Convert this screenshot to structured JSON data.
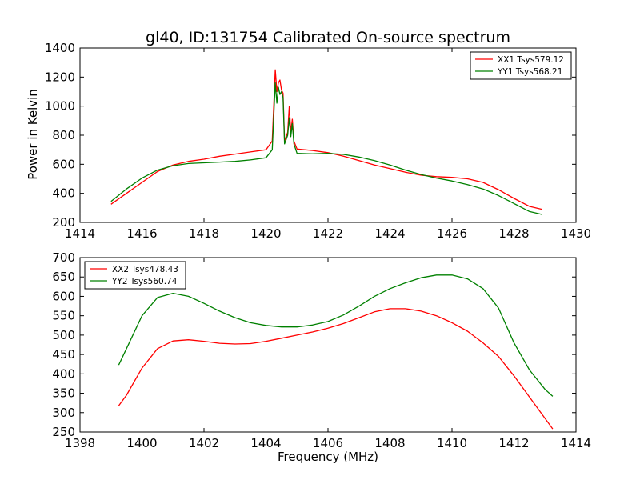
{
  "chart_data": [
    {
      "type": "line",
      "title": "gl40, ID:131754 Calibrated On-source spectrum",
      "xlabel": "",
      "ylabel": "Power in Kelvin",
      "xlim": [
        1414,
        1430
      ],
      "ylim": [
        200,
        1400
      ],
      "xticks": [
        1414,
        1416,
        1418,
        1420,
        1422,
        1424,
        1426,
        1428,
        1430
      ],
      "yticks": [
        200,
        400,
        600,
        800,
        1000,
        1200,
        1400
      ],
      "legend": "top-right",
      "series": [
        {
          "name": "XX1 Tsys579.12",
          "color": "#ff0000",
          "x": [
            1415.0,
            1415.5,
            1416.0,
            1416.5,
            1417.0,
            1417.5,
            1418.0,
            1418.5,
            1419.0,
            1419.5,
            1420.0,
            1420.2,
            1420.3,
            1420.35,
            1420.4,
            1420.45,
            1420.5,
            1420.55,
            1420.6,
            1420.7,
            1420.75,
            1420.8,
            1420.85,
            1420.9,
            1421.0,
            1421.5,
            1422.0,
            1422.5,
            1423.0,
            1423.5,
            1424.0,
            1424.5,
            1425.0,
            1425.5,
            1426.0,
            1426.5,
            1427.0,
            1427.5,
            1428.0,
            1428.5,
            1428.9
          ],
          "y": [
            325,
            400,
            475,
            550,
            595,
            620,
            635,
            655,
            670,
            685,
            700,
            760,
            1250,
            1100,
            1160,
            1180,
            1110,
            1090,
            760,
            820,
            1000,
            820,
            910,
            760,
            705,
            695,
            680,
            655,
            625,
            595,
            570,
            545,
            525,
            515,
            510,
            500,
            475,
            425,
            365,
            310,
            290
          ]
        },
        {
          "name": "YY1 Tsys568.21",
          "color": "#008000",
          "x": [
            1415.0,
            1415.5,
            1416.0,
            1416.5,
            1417.0,
            1417.5,
            1418.0,
            1418.5,
            1419.0,
            1419.5,
            1420.0,
            1420.2,
            1420.3,
            1420.35,
            1420.4,
            1420.45,
            1420.5,
            1420.55,
            1420.6,
            1420.7,
            1420.75,
            1420.8,
            1420.85,
            1420.9,
            1421.0,
            1421.5,
            1422.0,
            1422.5,
            1423.0,
            1423.5,
            1424.0,
            1424.5,
            1425.0,
            1425.5,
            1426.0,
            1426.5,
            1427.0,
            1427.5,
            1428.0,
            1428.5,
            1428.9
          ],
          "y": [
            345,
            430,
            505,
            560,
            590,
            605,
            610,
            615,
            620,
            630,
            645,
            700,
            1160,
            1020,
            1130,
            1080,
            1100,
            1060,
            740,
            800,
            920,
            790,
            880,
            740,
            675,
            672,
            675,
            668,
            650,
            625,
            595,
            560,
            530,
            505,
            485,
            460,
            430,
            385,
            330,
            275,
            255
          ]
        }
      ]
    },
    {
      "type": "line",
      "title": "",
      "xlabel": "Frequency (MHz)",
      "ylabel": "",
      "xlim": [
        1398,
        1414
      ],
      "ylim": [
        250,
        700
      ],
      "xticks": [
        1398,
        1400,
        1402,
        1404,
        1406,
        1408,
        1410,
        1412,
        1414
      ],
      "yticks": [
        250,
        300,
        350,
        400,
        450,
        500,
        550,
        600,
        650,
        700
      ],
      "legend": "top-left",
      "series": [
        {
          "name": "XX2 Tsys478.43",
          "color": "#ff0000",
          "x": [
            1399.25,
            1399.5,
            1400.0,
            1400.5,
            1401.0,
            1401.5,
            1402.0,
            1402.5,
            1403.0,
            1403.5,
            1404.0,
            1404.5,
            1405.0,
            1405.5,
            1406.0,
            1406.5,
            1407.0,
            1407.5,
            1408.0,
            1408.5,
            1409.0,
            1409.5,
            1410.0,
            1410.5,
            1411.0,
            1411.5,
            1412.0,
            1412.5,
            1413.0,
            1413.25
          ],
          "y": [
            318,
            345,
            415,
            465,
            485,
            488,
            484,
            479,
            477,
            478,
            484,
            492,
            500,
            508,
            518,
            530,
            545,
            560,
            568,
            568,
            562,
            550,
            532,
            510,
            480,
            445,
            395,
            340,
            285,
            258
          ]
        },
        {
          "name": "YY2 Tsys560.74",
          "color": "#008000",
          "x": [
            1399.25,
            1399.5,
            1400.0,
            1400.5,
            1401.0,
            1401.5,
            1402.0,
            1402.5,
            1403.0,
            1403.5,
            1404.0,
            1404.5,
            1405.0,
            1405.5,
            1406.0,
            1406.5,
            1407.0,
            1407.5,
            1408.0,
            1408.5,
            1409.0,
            1409.5,
            1410.0,
            1410.5,
            1411.0,
            1411.5,
            1412.0,
            1412.5,
            1413.0,
            1413.25
          ],
          "y": [
            423,
            465,
            550,
            597,
            608,
            600,
            582,
            562,
            545,
            532,
            525,
            521,
            521,
            526,
            535,
            552,
            575,
            600,
            620,
            635,
            648,
            655,
            655,
            645,
            620,
            570,
            480,
            410,
            360,
            342
          ]
        }
      ]
    }
  ]
}
